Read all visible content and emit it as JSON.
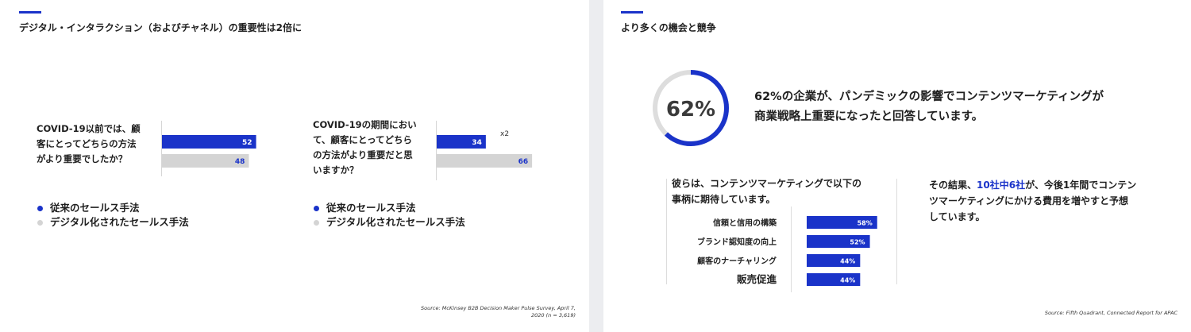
{
  "colors": {
    "accent": "#1a33c9",
    "traditional": "#1a33c9",
    "digital": "#d4d4d4",
    "ring_track": "#dddddd"
  },
  "left_slide": {
    "title": "デジタル・インタラクション（およびチャネル）の重要性は2倍に",
    "q1": {
      "line1": "COVID-19以前では、顧",
      "line2": "客にとってどちらの方法",
      "line3": "がより重要でしたか？"
    },
    "q2": {
      "line1": "COVID-19の期間におい",
      "line2": "て、顧客にとってどちら",
      "line3": "の方法がより重要だと思",
      "line4": "いますか？"
    },
    "multiplier_label": "x2",
    "legend": {
      "traditional": "従来のセールス手法",
      "digital": "デジタル化されたセールス手法"
    },
    "source": {
      "line1": "Source: McKinsey B2B Decision Maker Pulse Survey, April 7,",
      "line2": "2020 (n = 3,619)"
    }
  },
  "right_slide": {
    "title": "より多くの機会と競争",
    "ring_label": "62%",
    "headline": {
      "line1": "62%の企業が、パンデミックの影響でコンテンツマーケティングが",
      "line2": "商業戦略上重要になったと回答しています。"
    },
    "expectation_intro": {
      "line1": "彼らは、コンテンツマーケティングで以下の",
      "line2": "事柄に期待しています。"
    },
    "result": {
      "prefix": "その結果、",
      "highlight": "10社中6社",
      "suffix": "が、今後1年間でコンテン",
      "line2": "ツマーケティングにかける費用を増やすと予想",
      "line3": "しています。"
    },
    "source": "Source: Fifth Quadrant, Connected Report for APAC"
  },
  "chart_data": [
    {
      "type": "bar",
      "title": "COVID-19以前では、顧客にとってどちらの方法がより重要でしたか？",
      "categories": [
        "従来のセールス手法",
        "デジタル化されたセールス手法"
      ],
      "values": [
        52,
        48
      ],
      "value_labels": [
        "52",
        "48"
      ],
      "xlim": [
        0,
        100
      ],
      "orientation": "horizontal",
      "legend_position": "bottom-left"
    },
    {
      "type": "bar",
      "title": "COVID-19の期間において、顧客にとってどちらの方法がより重要だと思いますか？",
      "categories": [
        "従来のセールス手法",
        "デジタル化されたセールス手法"
      ],
      "values": [
        34,
        66
      ],
      "value_labels": [
        "34",
        "66"
      ],
      "xlim": [
        0,
        100
      ],
      "orientation": "horizontal",
      "legend_position": "bottom-left"
    },
    {
      "type": "pie",
      "label": "62%",
      "values": [
        62,
        38
      ],
      "style": "donut-ring"
    },
    {
      "type": "bar",
      "categories": [
        "信頼と信用の構築",
        "ブランド認知度の向上",
        "顧客のナーチャリング",
        "販売促進"
      ],
      "values": [
        58,
        52,
        44,
        44
      ],
      "value_labels": [
        "58%",
        "52%",
        "44%",
        "44%"
      ],
      "xlim": [
        0,
        100
      ],
      "orientation": "horizontal"
    }
  ]
}
